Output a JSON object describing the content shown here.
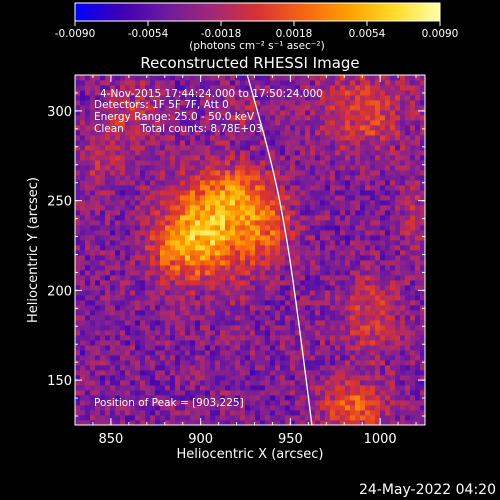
{
  "chart_data": {
    "type": "heatmap",
    "title": "Reconstructed RHESSI Image",
    "xlabel": "Heliocentric X (arcsec)",
    "ylabel": "Heliocentric Y (arcsec)",
    "xlim": [
      830,
      1025
    ],
    "ylim": [
      125,
      320
    ],
    "x_ticks": [
      850,
      900,
      950,
      1000
    ],
    "y_ticks": [
      150,
      200,
      250,
      300
    ],
    "colorbar": {
      "min": -0.009,
      "max": 0.009,
      "tick_values": [
        -0.009,
        -0.0054,
        -0.0018,
        0.0018,
        0.0054,
        0.009
      ],
      "tick_labels": [
        "-0.0090",
        "-0.0054",
        "-0.0018",
        "0.0018",
        "0.0054",
        "0.0090"
      ],
      "units": "(photons cm⁻² s⁻¹ asec⁻²)",
      "colormap": [
        "#0000ff",
        "#3c00b4",
        "#6e1aa0",
        "#a02878",
        "#d83232",
        "#f56414",
        "#ffa000",
        "#ffdc28",
        "#ffffaa"
      ]
    },
    "annotations": {
      "time_range": "4-Nov-2015 17:44:24.000 to 17:50:24.000",
      "detectors": "Detectors: 1F 5F 7F, Att 0",
      "energy_range": "Energy Range: 25.0 - 50.0 keV",
      "clean_counts": "Clean     Total counts: 8.78E+03",
      "peak_position": "Position of Peak = [903,225]"
    },
    "peak": {
      "x": 903,
      "y": 225
    },
    "sources": [
      {
        "x": 905,
        "y": 235,
        "amp": 0.0095,
        "sx": 17,
        "sy": 19
      },
      {
        "x": 938,
        "y": 235,
        "amp": 0.0045,
        "sx": 10,
        "sy": 14
      },
      {
        "x": 923,
        "y": 255,
        "amp": 0.004,
        "sx": 12,
        "sy": 10
      },
      {
        "x": 885,
        "y": 222,
        "amp": 0.0035,
        "sx": 10,
        "sy": 12
      },
      {
        "x": 862,
        "y": 298,
        "amp": 0.0028,
        "sx": 12,
        "sy": 12
      },
      {
        "x": 842,
        "y": 272,
        "amp": 0.0022,
        "sx": 9,
        "sy": 11
      },
      {
        "x": 990,
        "y": 300,
        "amp": 0.004,
        "sx": 18,
        "sy": 16
      },
      {
        "x": 995,
        "y": 185,
        "amp": 0.0035,
        "sx": 12,
        "sy": 16
      },
      {
        "x": 985,
        "y": 135,
        "amp": 0.006,
        "sx": 12,
        "sy": 10
      },
      {
        "x": 1018,
        "y": 240,
        "amp": 0.0022,
        "sx": 6,
        "sy": 16
      },
      {
        "x": 920,
        "y": 300,
        "amp": 0.0018,
        "sx": 10,
        "sy": 8
      }
    ],
    "limb_curve": [
      [
        926,
        320
      ],
      [
        940,
        270
      ],
      [
        948,
        230
      ],
      [
        955,
        180
      ],
      [
        962,
        125
      ]
    ],
    "grid": false
  },
  "footer_date": "24-May-2022 04:20"
}
